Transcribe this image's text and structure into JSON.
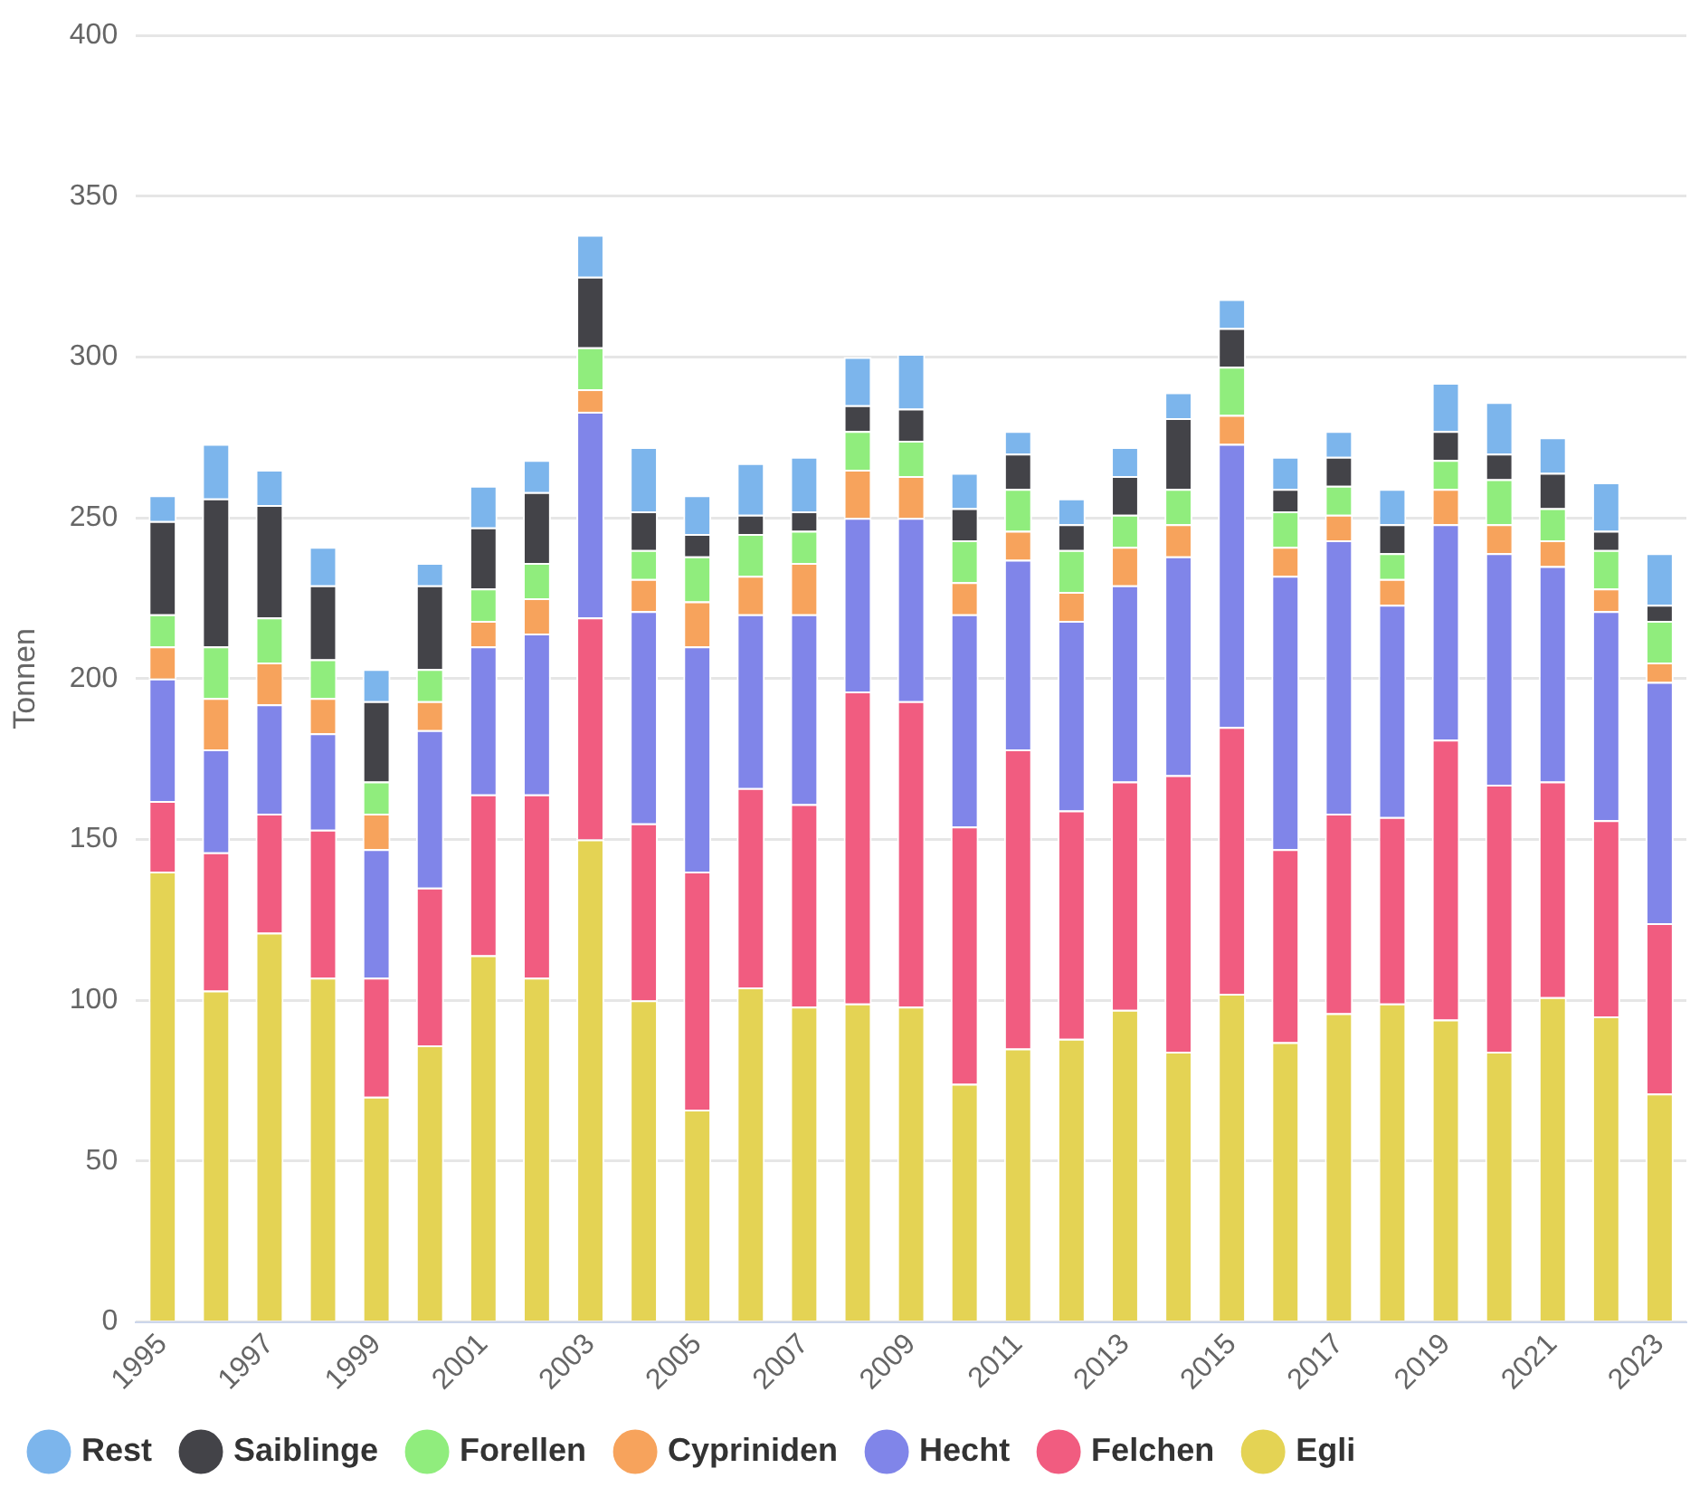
{
  "chart_data": {
    "type": "bar",
    "stacked": true,
    "ylabel": "Tonnen",
    "ylim": [
      0,
      400
    ],
    "yticks": [
      0,
      50,
      100,
      150,
      200,
      250,
      300,
      350,
      400
    ],
    "grid": "y",
    "legend": "bottom",
    "categories": [
      "1995",
      null,
      "1997",
      null,
      "1999",
      null,
      "2001",
      null,
      "2003",
      null,
      "2005",
      null,
      "2007",
      null,
      "2009",
      null,
      "2011",
      null,
      "2013",
      null,
      "2015",
      null,
      "2017",
      null,
      "2019",
      null,
      "2021",
      null,
      "2023"
    ],
    "series": [
      {
        "name": "Egli",
        "color": "#e4d354",
        "values": [
          140,
          103,
          121,
          107,
          70,
          86,
          114,
          107,
          150,
          100,
          66,
          104,
          98,
          99,
          98,
          74,
          85,
          88,
          97,
          84,
          102,
          87,
          96,
          99,
          94,
          84,
          101,
          95,
          71
        ]
      },
      {
        "name": "Felchen",
        "color": "#f15c80",
        "values": [
          22,
          43,
          37,
          46,
          37,
          49,
          50,
          57,
          69,
          55,
          74,
          62,
          63,
          97,
          95,
          80,
          93,
          71,
          71,
          86,
          83,
          60,
          62,
          58,
          87,
          83,
          67,
          61,
          53
        ]
      },
      {
        "name": "Hecht",
        "color": "#8085e9",
        "values": [
          38,
          32,
          34,
          30,
          40,
          49,
          46,
          50,
          64,
          66,
          70,
          54,
          59,
          54,
          57,
          66,
          59,
          59,
          61,
          68,
          88,
          85,
          85,
          66,
          67,
          72,
          67,
          65,
          75
        ]
      },
      {
        "name": "Cypriniden",
        "color": "#f7a35c",
        "values": [
          10,
          16,
          13,
          11,
          11,
          9,
          8,
          11,
          7,
          10,
          14,
          12,
          16,
          15,
          13,
          10,
          9,
          9,
          12,
          10,
          9,
          9,
          8,
          8,
          11,
          9,
          8,
          7,
          6
        ]
      },
      {
        "name": "Forellen",
        "color": "#90ed7d",
        "values": [
          10,
          16,
          14,
          12,
          10,
          10,
          10,
          11,
          13,
          9,
          14,
          13,
          10,
          12,
          11,
          13,
          13,
          13,
          10,
          11,
          15,
          11,
          9,
          8,
          9,
          14,
          10,
          12,
          13
        ]
      },
      {
        "name": "Saiblinge",
        "color": "#434348",
        "values": [
          29,
          46,
          35,
          23,
          25,
          26,
          19,
          22,
          22,
          12,
          7,
          6,
          6,
          8,
          10,
          10,
          11,
          8,
          12,
          22,
          12,
          7,
          9,
          9,
          9,
          8,
          11,
          6,
          5
        ]
      },
      {
        "name": "Rest",
        "color": "#7cb5ec",
        "values": [
          8,
          17,
          11,
          12,
          10,
          7,
          13,
          10,
          13,
          20,
          12,
          16,
          17,
          15,
          17,
          11,
          7,
          8,
          9,
          8,
          9,
          10,
          8,
          11,
          15,
          16,
          11,
          15,
          16
        ]
      }
    ]
  }
}
